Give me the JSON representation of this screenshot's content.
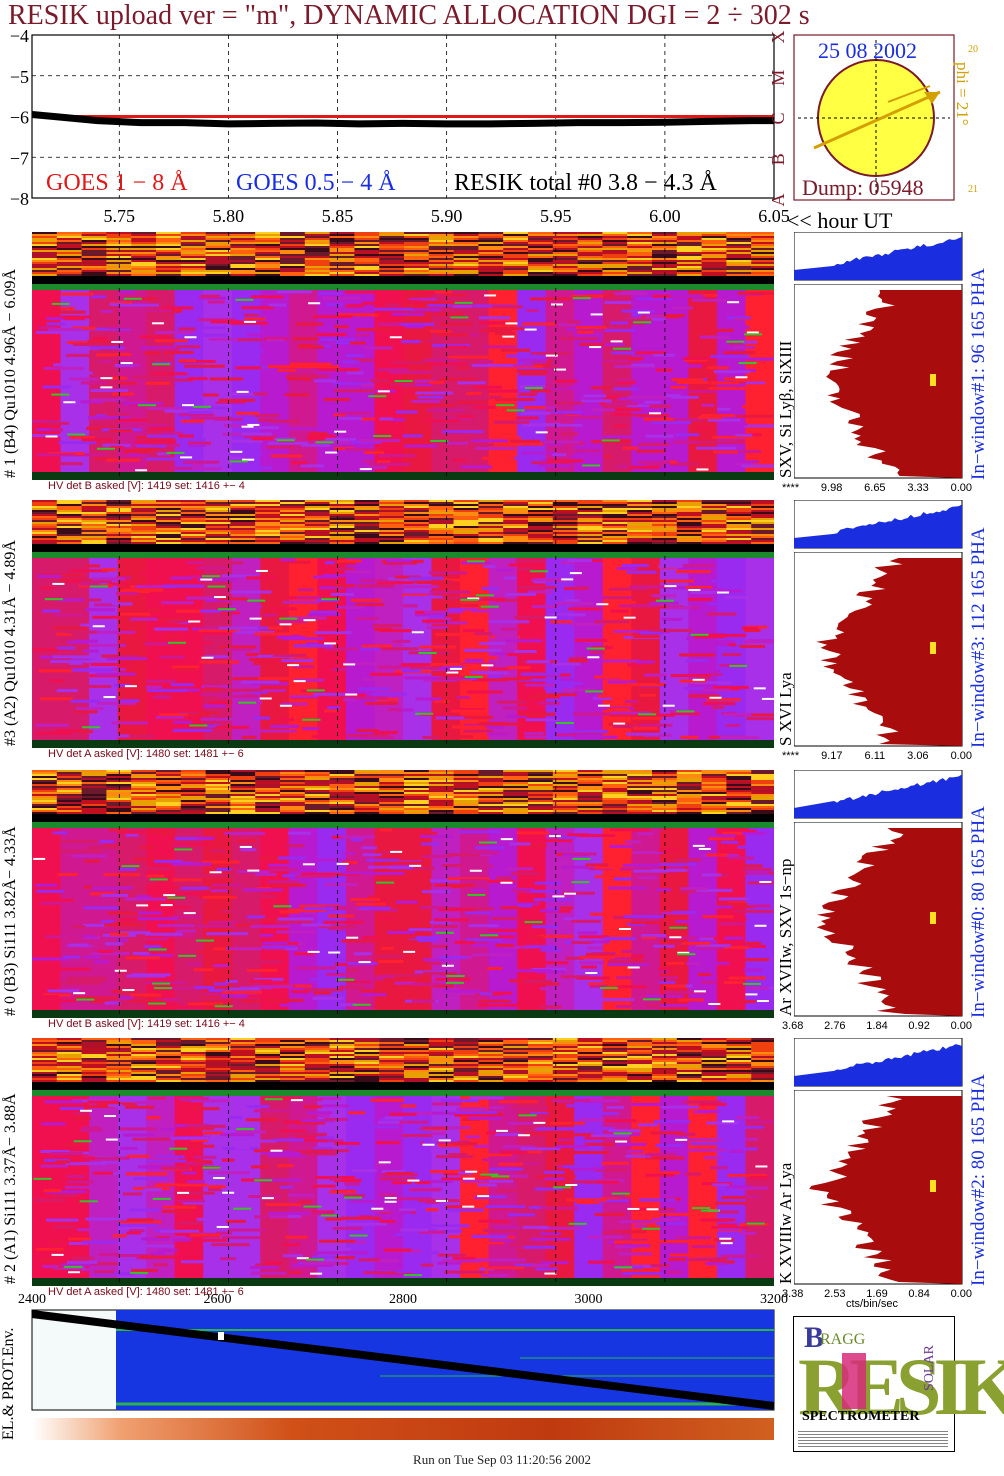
{
  "title": "RESIK upload ver = \"m\", DYNAMIC ALLOCATION  DGI =   2 ÷ 302 s",
  "goes_panel": {
    "y_ticks": [
      "−4",
      "−5",
      "−6",
      "−7",
      "−8"
    ],
    "class_letters": [
      "X",
      "M",
      "C",
      "B",
      "A"
    ],
    "legend": {
      "goes_long": "GOES 1 − 8 Å",
      "goes_short": "GOES 0.5 − 4 Å",
      "resik_total": "RESIK total #0  3.8 − 4.3 Å"
    },
    "colors": {
      "goes_long": "#e01818",
      "goes_short": "#1a2ee0",
      "resik": "#000000"
    }
  },
  "time_axis": {
    "ticks": [
      "5.75",
      "5.80",
      "5.85",
      "5.90",
      "5.95",
      "6.00",
      "6.05"
    ],
    "unit_label": "<< hour UT"
  },
  "sun_panel": {
    "date": "25 08 2002",
    "dump": "Dump: 05948",
    "phi_label": "phi = 21°",
    "phi_small_top": "20",
    "phi_small_bottom": "21"
  },
  "channels": [
    {
      "side_label": "# 1 (B4) Qu1010 4.96Å − 6.09Å",
      "lines_label": "SXV, Si Lyβ, SiXIII",
      "hv_label": "HV det B asked [V]:  1419 set:  1416 +−    4",
      "window_label": "In−window#1:  96 165  PHA",
      "pha_ticks": [
        "****",
        "9.98",
        "6.65",
        "3.33",
        "0.00"
      ]
    },
    {
      "side_label": "#3 (A2) Qu1010  4.31Å − 4.89Å",
      "lines_label": "S XVI Lya",
      "hv_label": "HV det A asked [V]:  1480 set:  1481 +−    6",
      "window_label": "In−window#3:  112 165  PHA",
      "pha_ticks": [
        "****",
        "9.17",
        "6.11",
        "3.06",
        "0.00"
      ]
    },
    {
      "side_label": "# 0 (B3) Si111  3.82Å− 4.33Å",
      "lines_label": "Ar XVIIw, SXV 1s−np",
      "hv_label": "HV det B asked [V]:  1419 set:  1416 +−    4",
      "window_label": "In−window#0:  80 165  PHA",
      "pha_ticks": [
        "3.68",
        "2.76",
        "1.84",
        "0.92",
        "0.00"
      ]
    },
    {
      "side_label": "# 2 (A1) Si111  3.37Å− 3.88Å",
      "lines_label": "K XVIIIw  Ar Lya",
      "hv_label": "HV det A asked [V]:  1480 set:  1481 +−    6",
      "window_label": "In−window#2:  80 165  PHA",
      "pha_ticks": [
        "3.38",
        "2.53",
        "1.69",
        "0.84",
        "0.00"
      ]
    }
  ],
  "pha_unit": "cts/bin/sec",
  "env_panel": {
    "label": "EL.& PROT.Env.",
    "ticks": [
      "2400",
      "2600",
      "2800",
      "3000",
      "3200"
    ]
  },
  "logo": {
    "letters": "RESIK",
    "bragg": "BRAGG",
    "solar": "SOLAR",
    "spectrometer": "SPECTROMETER"
  },
  "footer": "Run on Tue Sep 03 11:20:56 2002",
  "chart_data": [
    {
      "type": "line",
      "title": "RESIK upload ver = \"m\", DYNAMIC ALLOCATION  DGI =   2 ÷ 302 s",
      "xlabel": "<< hour UT",
      "ylabel": "",
      "x_range": [
        5.71,
        6.05
      ],
      "ylim": [
        -8,
        -4
      ],
      "log_scale": true,
      "grid": true,
      "series": [
        {
          "name": "GOES 1 − 8 Å",
          "x": [
            5.71,
            6.05
          ],
          "values": [
            -6.0,
            -6.0
          ]
        },
        {
          "name": "RESIK total #0  3.8 − 4.3 Å",
          "x": [
            5.71,
            5.72,
            5.74,
            5.76,
            5.78,
            5.8,
            5.82,
            5.84,
            5.86,
            5.88,
            5.9,
            5.92,
            5.94,
            5.96,
            5.98,
            6.0,
            6.02,
            6.04,
            6.05
          ],
          "values": [
            -5.95,
            -6.0,
            -6.1,
            -6.15,
            -6.15,
            -6.18,
            -6.17,
            -6.16,
            -6.18,
            -6.17,
            -6.18,
            -6.18,
            -6.17,
            -6.15,
            -6.15,
            -6.14,
            -6.12,
            -6.1,
            -6.1
          ]
        }
      ]
    }
  ]
}
